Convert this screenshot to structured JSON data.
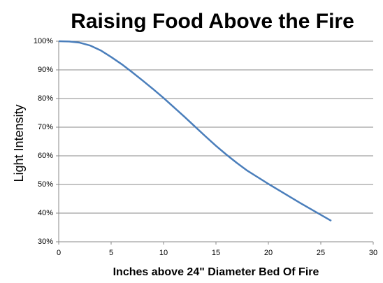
{
  "chart_data": {
    "type": "line",
    "title": "Raising Food Above the Fire",
    "x_label": "Inches above 24\" Diameter Bed Of Fire",
    "y_label": "Light Intensity",
    "x": [
      0,
      1,
      2,
      3,
      4,
      5,
      6,
      7,
      8,
      9,
      10,
      11,
      12,
      13,
      14,
      15,
      16,
      17,
      18,
      19,
      20,
      21,
      22,
      23,
      24,
      25,
      26
    ],
    "series": [
      {
        "name": "Light Intensity",
        "color": "#4a7ebb",
        "values": [
          100,
          99.9,
          99.5,
          98.5,
          96.8,
          94.5,
          92,
          89.2,
          86.3,
          83.3,
          80.2,
          76.9,
          73.6,
          70.2,
          66.8,
          63.5,
          60.4,
          57.5,
          54.8,
          52.5,
          50.2,
          48,
          45.8,
          43.6,
          41.5,
          39.4,
          37.3
        ]
      }
    ],
    "xlim": [
      0,
      30
    ],
    "xticks": [
      0,
      5,
      10,
      15,
      20,
      25,
      30
    ],
    "ylim": [
      30,
      100
    ],
    "yticks": [
      {
        "value": 30,
        "label": "30%"
      },
      {
        "value": 40,
        "label": "40%"
      },
      {
        "value": 50,
        "label": "50%"
      },
      {
        "value": 60,
        "label": "60%"
      },
      {
        "value": 70,
        "label": "70%"
      },
      {
        "value": 80,
        "label": "80%"
      },
      {
        "value": 90,
        "label": "90%"
      },
      {
        "value": 100,
        "label": "100%"
      }
    ],
    "grid": true
  }
}
